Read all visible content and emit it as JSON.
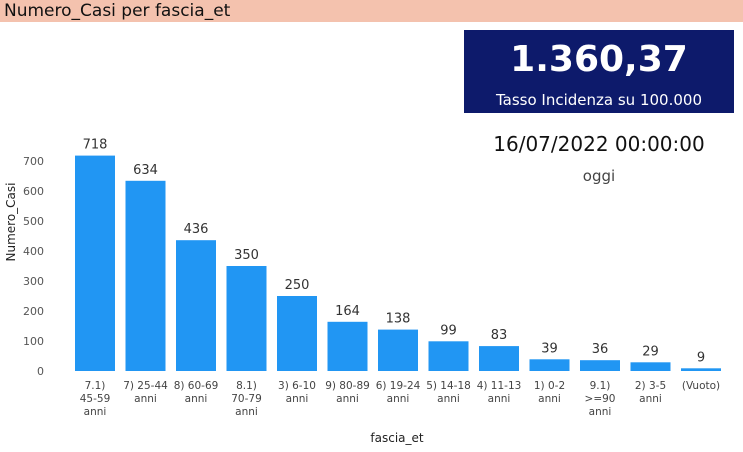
{
  "header": {
    "title": "Numero_Casi per fascia_et"
  },
  "kpi": {
    "value": "1.360,37",
    "label": "Tasso Incidenza su 100.000"
  },
  "date": {
    "value": "16/07/2022 00:00:00",
    "label": "oggi"
  },
  "colors": {
    "bar": "#2196f3",
    "title_bar": "#f4c2ae",
    "card": "#0d1a6b"
  },
  "chart_data": {
    "type": "bar",
    "xlabel": "fascia_et",
    "ylabel": "Numero_Casi",
    "ylim": [
      0,
      760
    ],
    "yticks": [
      0,
      100,
      200,
      300,
      400,
      500,
      600,
      700
    ],
    "grid": false,
    "categories": [
      [
        "7.1)",
        "45-59",
        "anni"
      ],
      [
        "7) 25-44",
        "anni"
      ],
      [
        "8) 60-69",
        "anni"
      ],
      [
        "8.1)",
        "70-79",
        "anni"
      ],
      [
        "3) 6-10",
        "anni"
      ],
      [
        "9) 80-89",
        "anni"
      ],
      [
        "6) 19-24",
        "anni"
      ],
      [
        "5) 14-18",
        "anni"
      ],
      [
        "4) 11-13",
        "anni"
      ],
      [
        "1) 0-2",
        "anni"
      ],
      [
        "9.1)",
        ">=90",
        "anni"
      ],
      [
        "2) 3-5",
        "anni"
      ],
      [
        "(Vuoto)"
      ]
    ],
    "values": [
      718,
      634,
      436,
      350,
      250,
      164,
      138,
      99,
      83,
      39,
      36,
      29,
      9
    ]
  }
}
